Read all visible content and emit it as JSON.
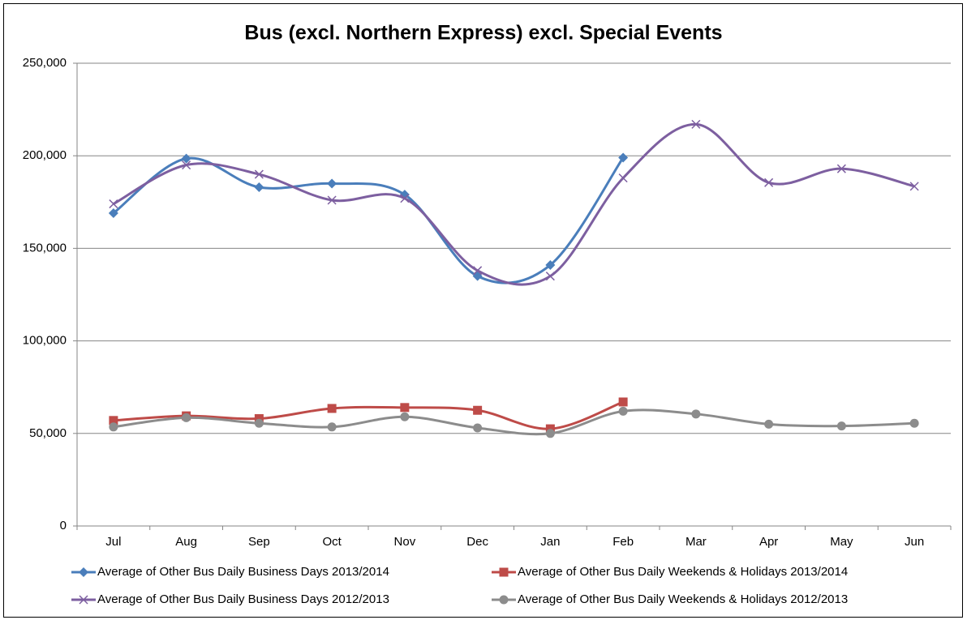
{
  "chart_data": {
    "type": "line",
    "title": "Bus (excl. Northern Express) excl. Special Events",
    "categories": [
      "Jul",
      "Aug",
      "Sep",
      "Oct",
      "Nov",
      "Dec",
      "Jan",
      "Feb",
      "Mar",
      "Apr",
      "May",
      "Jun"
    ],
    "series": [
      {
        "name": "Average of Other Bus Daily Business Days 2013/2014",
        "color": "#4a7ebb",
        "marker": "diamond",
        "values": [
          169000,
          198500,
          183000,
          185000,
          179000,
          135000,
          141000,
          199000,
          null,
          null,
          null,
          null
        ]
      },
      {
        "name": "Average of Other Bus Daily Weekends & Holidays 2013/2014",
        "color": "#be4b48",
        "marker": "square",
        "values": [
          57000,
          59500,
          58000,
          63500,
          64000,
          62500,
          52500,
          67000,
          null,
          null,
          null,
          null
        ]
      },
      {
        "name": "Average of Other Bus Daily Business Days 2012/2013",
        "color": "#7d5fa0",
        "marker": "x",
        "values": [
          174000,
          195000,
          190000,
          176000,
          177000,
          138000,
          135000,
          188000,
          217000,
          185500,
          193000,
          183500
        ]
      },
      {
        "name": "Average of Other Bus Daily Weekends & Holidays 2012/2013",
        "color": "#8c8c8c",
        "marker": "circle",
        "values": [
          53500,
          58500,
          55500,
          53500,
          59000,
          53000,
          50000,
          62000,
          60500,
          55000,
          54000,
          55500
        ]
      }
    ],
    "ylim": [
      0,
      250000
    ],
    "yticks": [
      0,
      {
        "value": 50000,
        "label": "50,000"
      },
      {
        "value": 100000,
        "label": "100,000"
      },
      {
        "value": 150000,
        "label": "150,000"
      },
      {
        "value": 200000,
        "label": "200,000"
      },
      {
        "value": 250000,
        "label": "250,000"
      }
    ],
    "grid": true,
    "smooth": true,
    "legend": "bottom"
  }
}
